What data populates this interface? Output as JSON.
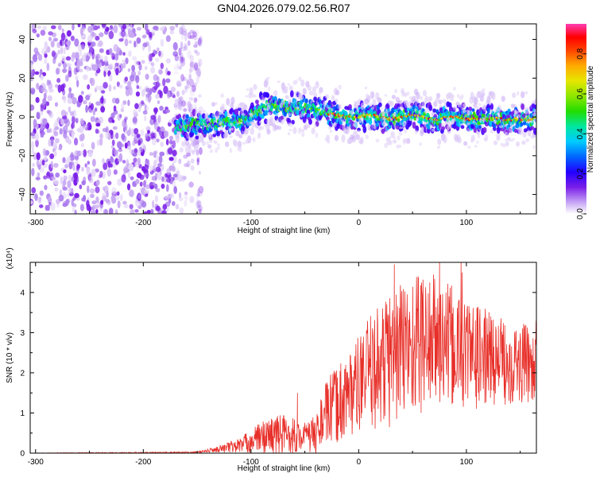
{
  "title": "GN04.2026.079.02.56.R07",
  "colors": {
    "snr_line": "#e8302a",
    "spectrogram_palette": [
      "#ffffff",
      "#d9c4f5",
      "#a878ee",
      "#7a1ee8",
      "#3300ff",
      "#0055ff",
      "#00c8ff",
      "#00e68a",
      "#33dd00",
      "#b8e600",
      "#ffcc00",
      "#ff6600",
      "#ff0000",
      "#ff3cb4"
    ]
  },
  "chart_data": [
    {
      "type": "heatmap",
      "name": "spectrogram",
      "title": "GN04.2026.079.02.56.R07",
      "xlabel": "Height of straight line (km)",
      "ylabel": "Frequency (Hz)",
      "xlim": [
        -305,
        165
      ],
      "ylim": [
        -50,
        48
      ],
      "xticks": [
        -300,
        -200,
        -100,
        0,
        100
      ],
      "yticks": [
        -40,
        -20,
        0,
        20,
        40
      ],
      "colorbar": {
        "label": "Normalized spectral amplitude",
        "range": [
          0,
          0.95
        ],
        "ticks": [
          0.0,
          0.2,
          0.4,
          0.6,
          0.8
        ]
      },
      "noise_region_x": [
        -305,
        -155
      ],
      "ridge": {
        "x": [
          -170,
          -150,
          -130,
          -110,
          -100,
          -90,
          -80,
          -70,
          -60,
          -50,
          -40,
          -30,
          -20,
          -10,
          0,
          10,
          20,
          30,
          40,
          50,
          60,
          70,
          80,
          90,
          100,
          110,
          120,
          130,
          140,
          150,
          165
        ],
        "frequency": [
          -5,
          -4,
          -3.5,
          -2.5,
          1,
          4.5,
          6,
          5,
          4.5,
          5,
          4,
          2,
          1,
          0,
          0,
          1,
          0,
          -1,
          0,
          1,
          0,
          -1.5,
          -0.5,
          0,
          -1.5,
          -1,
          -1,
          -1,
          -1.5,
          -1,
          -1
        ]
      }
    },
    {
      "type": "line",
      "name": "snr",
      "unit_label": "(x10⁴)",
      "xlabel": "Height of straight line (km)",
      "ylabel": "SNR (10 * v/v)",
      "xlim": [
        -305,
        165
      ],
      "ylim": [
        0,
        4.75
      ],
      "xticks": [
        -300,
        -200,
        -100,
        0,
        100
      ],
      "yticks": [
        0,
        1,
        2,
        3,
        4
      ],
      "envelope": {
        "x": [
          -305,
          -150,
          -130,
          -110,
          -100,
          -90,
          -80,
          -70,
          -60,
          -55,
          -40,
          -35,
          -30,
          -20,
          -10,
          0,
          10,
          20,
          30,
          40,
          50,
          60,
          70,
          80,
          90,
          100,
          110,
          120,
          130,
          140,
          150,
          165
        ],
        "y": [
          0,
          0.02,
          0.1,
          0.2,
          0.3,
          0.4,
          0.45,
          0.45,
          0.45,
          0.4,
          0.45,
          0.8,
          1.0,
          1.2,
          1.5,
          1.7,
          2.0,
          2.2,
          2.4,
          2.6,
          2.7,
          2.8,
          2.8,
          2.7,
          2.6,
          2.5,
          2.4,
          2.4,
          2.3,
          2.3,
          2.2,
          2.3
        ]
      },
      "noise_amplitude": {
        "x": [
          -305,
          -150,
          -130,
          -110,
          -100,
          -90,
          -80,
          -70,
          -60,
          -55,
          -40,
          -35,
          -30,
          -20,
          -10,
          0,
          10,
          20,
          30,
          40,
          50,
          60,
          70,
          80,
          90,
          100,
          110,
          120,
          130,
          140,
          150,
          165
        ],
        "y": [
          0.005,
          0.02,
          0.08,
          0.2,
          0.3,
          0.4,
          0.5,
          0.55,
          0.5,
          0.3,
          0.5,
          0.6,
          0.8,
          1.0,
          1.1,
          1.2,
          1.4,
          1.6,
          1.8,
          1.8,
          1.8,
          1.8,
          1.7,
          1.6,
          1.5,
          1.4,
          1.3,
          1.2,
          1.1,
          1.1,
          1.0,
          1.0
        ]
      },
      "peaks": [
        {
          "x": -57,
          "y": 1.5
        },
        {
          "x": 33,
          "y": 4.7
        },
        {
          "x": 75,
          "y": 4.75
        },
        {
          "x": 95,
          "y": 4.75
        },
        {
          "x": 96,
          "y": 4.5
        },
        {
          "x": 55,
          "y": 4.4
        }
      ]
    }
  ]
}
